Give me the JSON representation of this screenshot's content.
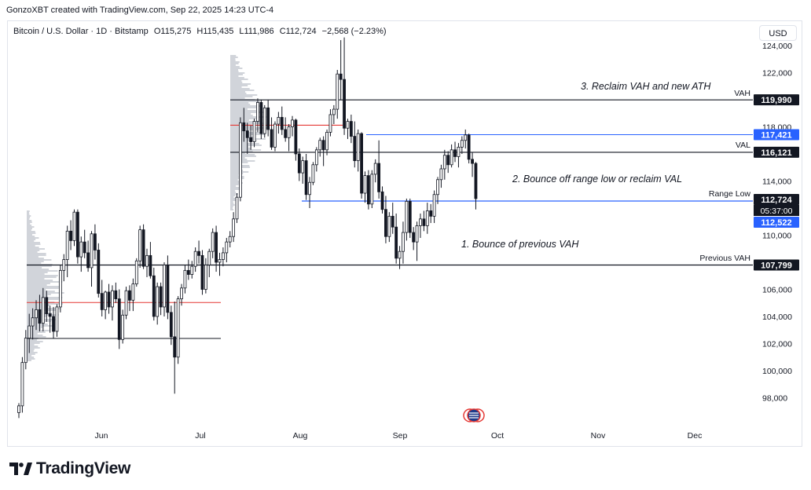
{
  "header": {
    "credit": "GonzoXBT created with TradingView.com, Sep 22, 2025 14:23 UTC-4",
    "symbol": "Bitcoin / U.S. Dollar · 1D · Bitstamp",
    "open": "O115,275",
    "high": "H115,435",
    "low": "L111,986",
    "close": "C112,724",
    "change": "−2,568 (−2.23%)",
    "currency": "USD"
  },
  "footer": {
    "brand": "TradingView"
  },
  "colors": {
    "up": "#131722",
    "down": "#131722",
    "level": "#131722",
    "poc": "#e53935",
    "range": "#2962ff",
    "badge_blue": "#2962ff",
    "badge_dark": "#131722"
  },
  "chart_data": {
    "type": "candlestick",
    "title": "",
    "x_labels": [
      "Jun",
      "Jul",
      "Aug",
      "Sep",
      "Oct",
      "Nov",
      "Dec"
    ],
    "y_ticks": [
      "124,000",
      "122,000",
      "120,000",
      "118,000",
      "116,000",
      "114,000",
      "112,000",
      "110,000",
      "108,000",
      "106,000",
      "104,000",
      "102,000",
      "100,000",
      "98,000"
    ],
    "ylim": [
      96500,
      125000
    ],
    "levels": [
      {
        "name": "VAH",
        "price": 119990,
        "label": "119,990"
      },
      {
        "name": "",
        "price": 117421,
        "label": "117,421"
      },
      {
        "name": "VAL",
        "price": 116121,
        "label": "116,121"
      },
      {
        "name": "Range Low",
        "price": 112522,
        "label": "112,522"
      },
      {
        "name": "Previous VAH",
        "price": 107799,
        "label": "107,799"
      }
    ],
    "current_price": {
      "label": "112,724",
      "countdown": "05:37:00",
      "price": 112724
    },
    "annotations": [
      "3. Reclaim VAH and new ATH",
      "2. Bounce off range low or reclaim VAL",
      "1. Bounce of previous VAH"
    ],
    "candles": [
      [
        96900,
        97600,
        96500,
        97400
      ],
      [
        97400,
        101000,
        96900,
        100600
      ],
      [
        100600,
        103000,
        100100,
        102400
      ],
      [
        102400,
        104200,
        101300,
        103300
      ],
      [
        103300,
        104600,
        102300,
        103900
      ],
      [
        103900,
        105200,
        103000,
        104500
      ],
      [
        104500,
        105600,
        102900,
        103500
      ],
      [
        103500,
        106100,
        102900,
        105400
      ],
      [
        105400,
        105900,
        103600,
        104200
      ],
      [
        104200,
        104800,
        102800,
        104000
      ],
      [
        104000,
        104700,
        102400,
        102900
      ],
      [
        102900,
        104900,
        102500,
        104700
      ],
      [
        104700,
        107800,
        104300,
        107400
      ],
      [
        107400,
        108600,
        106600,
        108200
      ],
      [
        108200,
        110700,
        106900,
        110300
      ],
      [
        110300,
        111100,
        108900,
        109600
      ],
      [
        109600,
        111900,
        109200,
        111700
      ],
      [
        111700,
        111900,
        107900,
        108400
      ],
      [
        108400,
        109900,
        107300,
        109500
      ],
      [
        109500,
        110400,
        108300,
        108700
      ],
      [
        108700,
        109600,
        107300,
        107600
      ],
      [
        107600,
        110300,
        106200,
        110100
      ],
      [
        110100,
        110800,
        108200,
        108900
      ],
      [
        108900,
        109400,
        105400,
        105700
      ],
      [
        105700,
        106700,
        104000,
        104500
      ],
      [
        104500,
        105900,
        103800,
        105800
      ],
      [
        105800,
        106400,
        104200,
        104700
      ],
      [
        104700,
        106300,
        103700,
        105900
      ],
      [
        105900,
        106500,
        105000,
        105300
      ],
      [
        105300,
        106000,
        101600,
        102300
      ],
      [
        102300,
        104500,
        102000,
        104100
      ],
      [
        104100,
        106200,
        103800,
        105900
      ],
      [
        105900,
        106300,
        104400,
        105200
      ],
      [
        105200,
        106800,
        104400,
        106400
      ],
      [
        106400,
        108300,
        106200,
        108100
      ],
      [
        108100,
        110700,
        107600,
        110400
      ],
      [
        110400,
        110800,
        107500,
        107700
      ],
      [
        107700,
        109000,
        106900,
        108500
      ],
      [
        108500,
        109500,
        106800,
        107000
      ],
      [
        107000,
        107600,
        103700,
        104000
      ],
      [
        104000,
        106500,
        103400,
        106200
      ],
      [
        106200,
        106500,
        104100,
        104700
      ],
      [
        104700,
        108000,
        104000,
        107800
      ],
      [
        107800,
        108500,
        103800,
        104300
      ],
      [
        104300,
        104800,
        101900,
        102500
      ],
      [
        102500,
        105100,
        98300,
        101000
      ],
      [
        101000,
        105500,
        100500,
        105300
      ],
      [
        105300,
        106400,
        104800,
        106100
      ],
      [
        106100,
        107800,
        105700,
        107400
      ],
      [
        107400,
        108200,
        106700,
        107100
      ],
      [
        107100,
        108100,
        106800,
        107700
      ],
      [
        107700,
        109100,
        107300,
        108800
      ],
      [
        108800,
        109600,
        107900,
        108500
      ],
      [
        108500,
        108900,
        105600,
        106000
      ],
      [
        106000,
        108300,
        105700,
        107800
      ],
      [
        107800,
        109000,
        106900,
        108800
      ],
      [
        108800,
        110500,
        108300,
        110200
      ],
      [
        110200,
        110700,
        107300,
        108000
      ],
      [
        108000,
        108700,
        107000,
        108200
      ],
      [
        108200,
        109100,
        107700,
        108700
      ],
      [
        108700,
        109800,
        108000,
        109500
      ],
      [
        109500,
        110300,
        109100,
        109900
      ],
      [
        109900,
        111700,
        109500,
        111200
      ],
      [
        111200,
        113100,
        110900,
        112800
      ],
      [
        112800,
        118700,
        112500,
        118300
      ],
      [
        118300,
        119400,
        116900,
        117700
      ],
      [
        117700,
        118300,
        116000,
        117200
      ],
      [
        117200,
        118100,
        116300,
        116900
      ],
      [
        116900,
        118600,
        116500,
        118400
      ],
      [
        118400,
        120100,
        117600,
        119800
      ],
      [
        119800,
        120000,
        117100,
        117500
      ],
      [
        117500,
        119600,
        117200,
        119400
      ],
      [
        119400,
        120000,
        117300,
        117800
      ],
      [
        117800,
        118700,
        116300,
        116500
      ],
      [
        116500,
        118400,
        116200,
        118200
      ],
      [
        118200,
        119100,
        117500,
        118700
      ],
      [
        118700,
        119500,
        117400,
        117800
      ],
      [
        117800,
        118700,
        116900,
        117200
      ],
      [
        117200,
        118200,
        116200,
        118000
      ],
      [
        118000,
        118800,
        117300,
        118500
      ],
      [
        118500,
        118600,
        115500,
        116000
      ],
      [
        116000,
        116400,
        114000,
        114600
      ],
      [
        114600,
        115800,
        113800,
        115500
      ],
      [
        115500,
        116000,
        112600,
        113000
      ],
      [
        113000,
        114300,
        112000,
        113900
      ],
      [
        113900,
        115400,
        113700,
        115200
      ],
      [
        115200,
        116500,
        114700,
        116300
      ],
      [
        116300,
        117200,
        115800,
        117000
      ],
      [
        117000,
        117300,
        115100,
        116300
      ],
      [
        116300,
        117800,
        115900,
        117600
      ],
      [
        117600,
        119300,
        117300,
        118900
      ],
      [
        118900,
        119600,
        118200,
        119300
      ],
      [
        119300,
        122200,
        118600,
        121900
      ],
      [
        121900,
        124400,
        120000,
        121500
      ],
      [
        121500,
        124600,
        117400,
        117900
      ],
      [
        117900,
        118600,
        117100,
        118400
      ],
      [
        118400,
        118900,
        116800,
        117300
      ],
      [
        117300,
        118400,
        115000,
        115500
      ],
      [
        115500,
        117800,
        114700,
        117500
      ],
      [
        117500,
        117600,
        112700,
        113100
      ],
      [
        113100,
        114700,
        112400,
        114400
      ],
      [
        114400,
        114800,
        111900,
        112300
      ],
      [
        112300,
        114800,
        112000,
        114500
      ],
      [
        114500,
        115600,
        113900,
        115300
      ],
      [
        115300,
        117000,
        112700,
        113200
      ],
      [
        113200,
        113600,
        111600,
        111900
      ],
      [
        111900,
        112900,
        109400,
        109900
      ],
      [
        109900,
        111700,
        109500,
        111400
      ],
      [
        111400,
        112400,
        110100,
        110600
      ],
      [
        110600,
        111600,
        107900,
        108300
      ],
      [
        108300,
        109200,
        107500,
        108800
      ],
      [
        108800,
        111000,
        107900,
        110200
      ],
      [
        110200,
        112700,
        109600,
        112500
      ],
      [
        112500,
        112700,
        109800,
        110200
      ],
      [
        110200,
        110600,
        108900,
        109500
      ],
      [
        109500,
        111000,
        108100,
        110700
      ],
      [
        110700,
        111600,
        109800,
        111200
      ],
      [
        111200,
        111800,
        110300,
        110700
      ],
      [
        110700,
        112400,
        110100,
        111800
      ],
      [
        111800,
        112300,
        110900,
        111400
      ],
      [
        111400,
        113300,
        110900,
        113000
      ],
      [
        113000,
        114300,
        112300,
        114100
      ],
      [
        114100,
        115200,
        113500,
        114900
      ],
      [
        114900,
        116300,
        114100,
        115900
      ],
      [
        115900,
        116200,
        114600,
        115200
      ],
      [
        115200,
        116700,
        115000,
        116300
      ],
      [
        116300,
        116900,
        115400,
        115800
      ],
      [
        115800,
        116800,
        115000,
        116500
      ],
      [
        116500,
        117300,
        116000,
        117000
      ],
      [
        117000,
        117800,
        116400,
        117400
      ],
      [
        117400,
        117500,
        115300,
        115600
      ],
      [
        115600,
        116100,
        114300,
        115300
      ],
      [
        115300,
        115400,
        111900,
        112700
      ]
    ]
  }
}
